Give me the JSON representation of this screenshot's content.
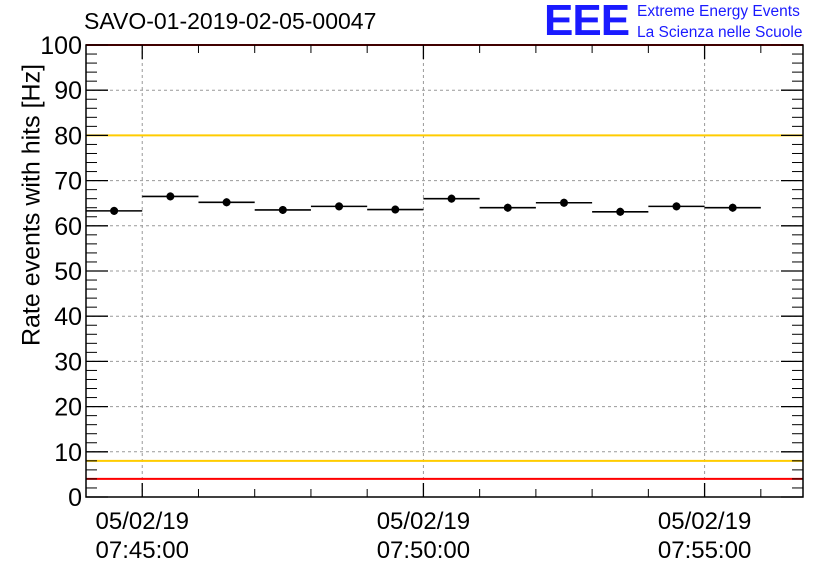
{
  "chart_data": {
    "type": "scatter",
    "title": "SAVO-01-2019-02-05-00047",
    "xlabel": "",
    "ylabel": "Rate events with hits [Hz]",
    "ylim": [
      0,
      100
    ],
    "yticks": [
      0,
      10,
      20,
      30,
      40,
      50,
      60,
      70,
      80,
      90,
      100
    ],
    "xlim_minutes": [
      -1.0,
      11.75
    ],
    "xticks": [
      {
        "minute": 0,
        "date": "05/02/19",
        "time": "07:45:00"
      },
      {
        "minute": 5,
        "date": "05/02/19",
        "time": "07:50:00"
      },
      {
        "minute": 10,
        "date": "05/02/19",
        "time": "07:55:00"
      }
    ],
    "series": [
      {
        "name": "rate",
        "x_minutes": [
          -0.5,
          0.5,
          1.5,
          2.5,
          3.5,
          4.5,
          5.5,
          6.5,
          7.5,
          8.5,
          9.5,
          10.5
        ],
        "bin_half_width_minutes": 0.5,
        "values": [
          63.3,
          66.5,
          65.2,
          63.5,
          64.3,
          63.6,
          66.0,
          64.0,
          65.1,
          63.1,
          64.3,
          64.0
        ]
      }
    ],
    "reference_lines": [
      {
        "value": 100,
        "color": "#ff0000"
      },
      {
        "value": 80,
        "color": "#ffcc00"
      },
      {
        "value": 8,
        "color": "#ffcc00"
      },
      {
        "value": 4,
        "color": "#ff0000"
      }
    ],
    "grid": true
  },
  "logo": {
    "mark": "EEE",
    "line1": "Extreme Energy Events",
    "line2": "La Scienza nelle Scuole"
  }
}
